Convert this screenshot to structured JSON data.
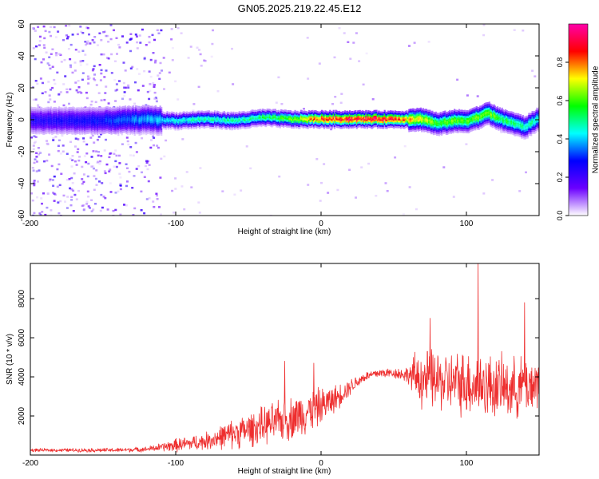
{
  "title": "GN05.2025.219.22.45.E12",
  "chart_data": [
    {
      "type": "heatmap",
      "title": "GN05.2025.219.22.45.E12",
      "xlabel": "Height of straight line (km)",
      "ylabel": "Frequency (Hz)",
      "xlim": [
        -200,
        150
      ],
      "ylim": [
        -60,
        60
      ],
      "x_ticks": [
        -200,
        -100,
        0,
        100
      ],
      "y_ticks": [
        -60,
        -40,
        -20,
        0,
        20,
        40,
        60
      ],
      "colorbar": {
        "label": "Normalized spectral amplitude",
        "range": [
          0,
          1
        ],
        "ticks": [
          "0.0",
          "0.2",
          "0.4",
          "0.6",
          "0.8"
        ],
        "colormap": [
          "#ffffff",
          "#6b00ff",
          "#0000ff",
          "#00ffff",
          "#00ff00",
          "#ffff00",
          "#ff0000",
          "#ff00aa"
        ]
      },
      "ridge": {
        "description_x": [
          -200,
          -150,
          -120,
          -100,
          -80,
          -60,
          -40,
          -20,
          0,
          20,
          40,
          60,
          70,
          80,
          90,
          100,
          110,
          115,
          120,
          130,
          140,
          150
        ],
        "frequency_hz": [
          0,
          0,
          1,
          0,
          1,
          0,
          2,
          1,
          1,
          1,
          1,
          1,
          1,
          -2,
          0,
          0,
          3,
          5,
          2,
          -1,
          -4,
          2
        ],
        "peak_amplitude": [
          0.25,
          0.3,
          0.4,
          0.45,
          0.5,
          0.5,
          0.55,
          0.65,
          0.9,
          0.95,
          0.95,
          0.8,
          0.7,
          0.6,
          0.65,
          0.6,
          0.65,
          0.7,
          0.6,
          0.55,
          0.5,
          0.5
        ]
      },
      "grid": false
    },
    {
      "type": "line",
      "xlabel": "Height of straight line (km)",
      "ylabel": "SNR (10 * v/v)",
      "xlim": [
        -200,
        150
      ],
      "ylim": [
        0,
        9800
      ],
      "x_ticks": [
        -200,
        -100,
        0,
        100
      ],
      "y_ticks": [
        2000,
        4000,
        6000,
        8000
      ],
      "color": "#ee2e2e",
      "envelope": {
        "x": [
          -200,
          -180,
          -160,
          -140,
          -120,
          -110,
          -100,
          -90,
          -80,
          -70,
          -60,
          -50,
          -40,
          -30,
          -20,
          -10,
          0,
          10,
          20,
          30,
          40,
          50,
          60,
          65,
          70,
          80,
          90,
          100,
          110,
          120,
          130,
          140,
          150
        ],
        "mean": [
          250,
          250,
          250,
          250,
          300,
          400,
          500,
          600,
          700,
          900,
          1100,
          1300,
          1500,
          1700,
          1900,
          2200,
          2500,
          2900,
          3500,
          4000,
          4200,
          4200,
          4100,
          4000,
          3900,
          3800,
          3700,
          3700,
          3600,
          3500,
          3400,
          3500,
          3700
        ],
        "spread": [
          100,
          100,
          120,
          130,
          150,
          250,
          400,
          450,
          500,
          700,
          900,
          1000,
          1100,
          1200,
          1300,
          1300,
          1100,
          800,
          500,
          300,
          300,
          300,
          500,
          1500,
          1800,
          1800,
          1800,
          2000,
          2000,
          1900,
          1800,
          1800,
          1700
        ]
      },
      "spikes": [
        {
          "x": -25,
          "y": 4800
        },
        {
          "x": -5,
          "y": 4700
        },
        {
          "x": 75,
          "y": 7000
        },
        {
          "x": 108,
          "y": 9800
        },
        {
          "x": 140,
          "y": 7800
        }
      ]
    }
  ]
}
